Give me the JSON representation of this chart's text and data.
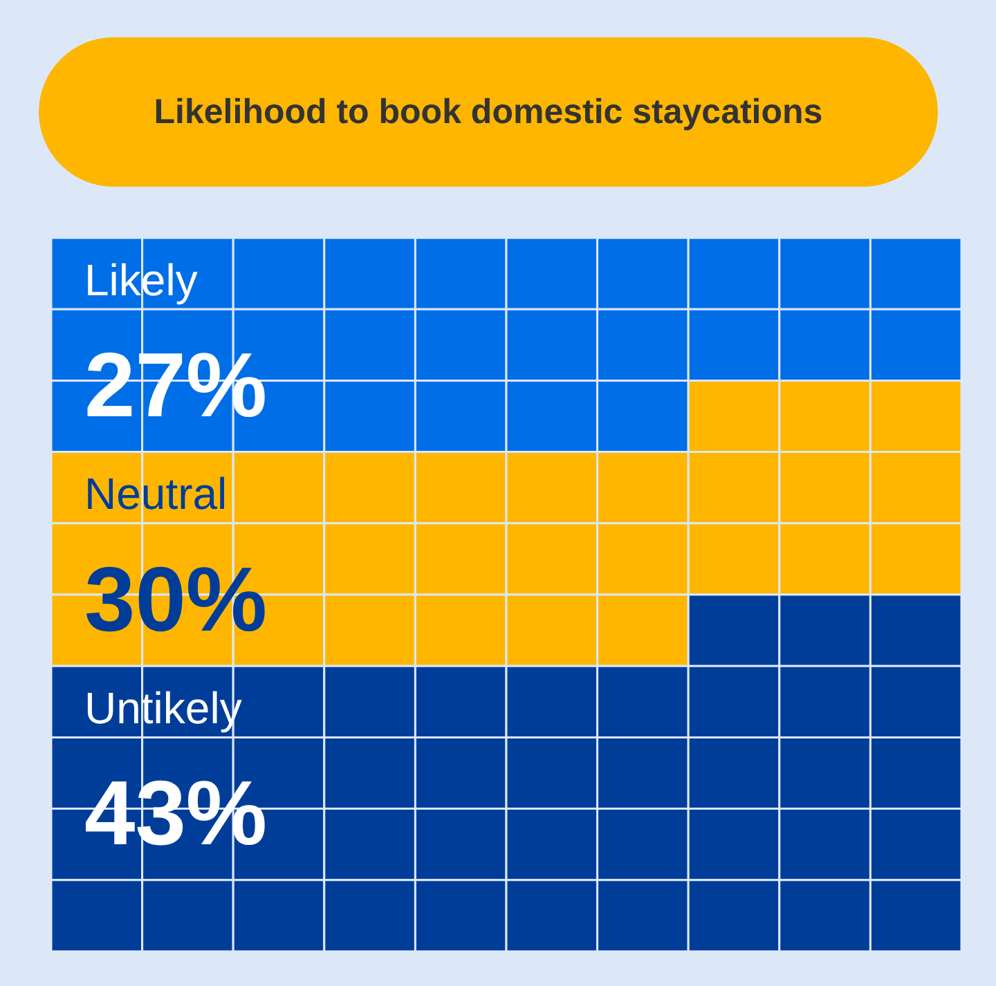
{
  "chart_data": {
    "type": "other",
    "title": "Likelihood to book domestic staycations",
    "categories": [
      "Likely",
      "Neutral",
      "Untikely"
    ],
    "values": [
      27,
      30,
      43
    ],
    "value_labels": [
      "27%",
      "30%",
      "43%"
    ],
    "colors": [
      "#006ee6",
      "#ffb600",
      "#003d99"
    ]
  }
}
